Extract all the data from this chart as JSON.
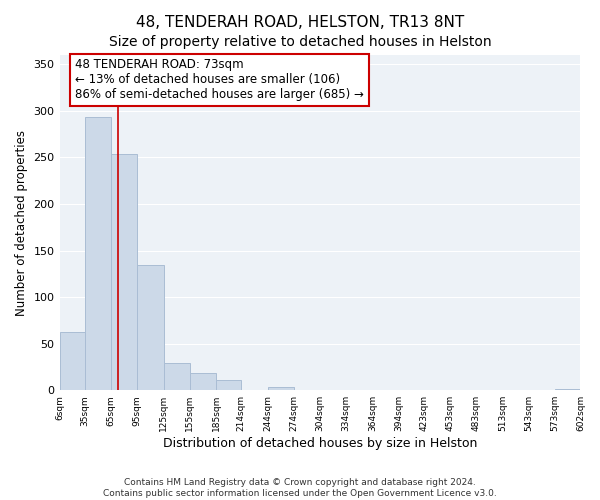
{
  "title": "48, TENDERAH ROAD, HELSTON, TR13 8NT",
  "subtitle": "Size of property relative to detached houses in Helston",
  "xlabel": "Distribution of detached houses by size in Helston",
  "ylabel": "Number of detached properties",
  "bar_color": "#ccd9e8",
  "bar_edge_color": "#aabdd4",
  "bins": [
    6,
    35,
    65,
    95,
    125,
    155,
    185,
    214,
    244,
    274,
    304,
    334,
    364,
    394,
    423,
    453,
    483,
    513,
    543,
    573,
    602
  ],
  "counts": [
    62,
    293,
    254,
    134,
    29,
    18,
    11,
    0,
    3,
    0,
    0,
    0,
    0,
    0,
    0,
    0,
    0,
    0,
    0,
    1
  ],
  "property_size": 73,
  "vline_color": "#cc0000",
  "annotation_line1": "48 TENDERAH ROAD: 73sqm",
  "annotation_line2": "← 13% of detached houses are smaller (106)",
  "annotation_line3": "86% of semi-detached houses are larger (685) →",
  "annotation_box_color": "#ffffff",
  "annotation_box_edge": "#cc0000",
  "tick_labels": [
    "6sqm",
    "35sqm",
    "65sqm",
    "95sqm",
    "125sqm",
    "155sqm",
    "185sqm",
    "214sqm",
    "244sqm",
    "274sqm",
    "304sqm",
    "334sqm",
    "364sqm",
    "394sqm",
    "423sqm",
    "453sqm",
    "483sqm",
    "513sqm",
    "543sqm",
    "573sqm",
    "602sqm"
  ],
  "ylim": [
    0,
    360
  ],
  "yticks": [
    0,
    50,
    100,
    150,
    200,
    250,
    300,
    350
  ],
  "footer": "Contains HM Land Registry data © Crown copyright and database right 2024.\nContains public sector information licensed under the Open Government Licence v3.0.",
  "background_color": "#edf2f7",
  "grid_color": "#ffffff",
  "title_fontsize": 11,
  "subtitle_fontsize": 10
}
